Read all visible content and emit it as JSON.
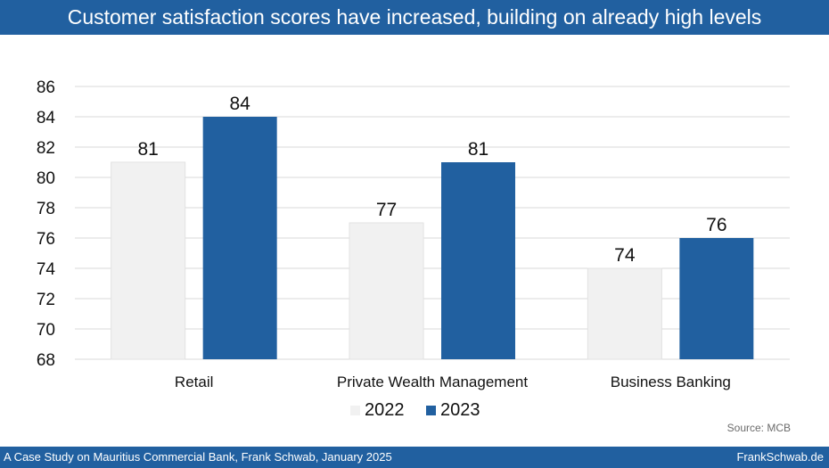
{
  "header": {
    "title": "Customer satisfaction scores have increased, building on already high levels"
  },
  "footer": {
    "left_text": "A Case Study on Mauritius Commercial Bank, Frank Schwab, January 2025",
    "right_text": "FrankSchwab.de"
  },
  "source_note": "Source:  MCB",
  "colors": {
    "brand_blue": "#2160a0",
    "series_2022": "#f1f1f1",
    "series_2023": "#2160a0",
    "grid": "#d9d9d9"
  },
  "chart_data": {
    "type": "bar",
    "categories": [
      "Retail",
      "Private Wealth Management",
      "Business Banking"
    ],
    "series": [
      {
        "name": "2022",
        "values": [
          81,
          77,
          74
        ]
      },
      {
        "name": "2023",
        "values": [
          84,
          81,
          76
        ]
      }
    ],
    "ylim": [
      68,
      86
    ],
    "yticks": [
      68,
      70,
      72,
      74,
      76,
      78,
      80,
      82,
      84,
      86
    ],
    "grid": true,
    "legend": "bottom",
    "data_labels": true
  }
}
